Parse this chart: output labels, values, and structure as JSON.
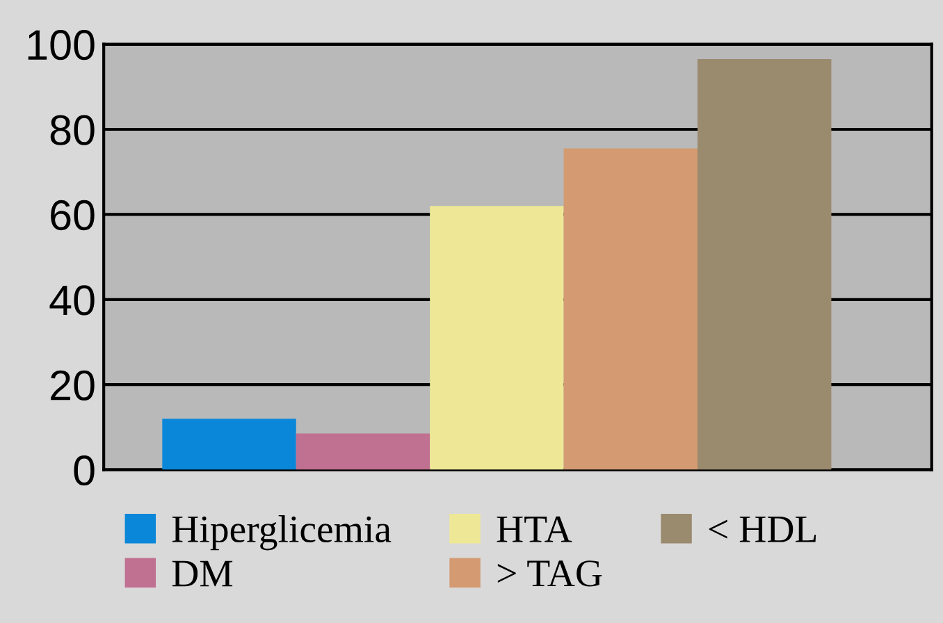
{
  "chart_data": {
    "type": "bar",
    "categories": [
      null
    ],
    "series": [
      {
        "name": "Hiperglicemia",
        "color": "#0a87d9",
        "values": [
          12
        ]
      },
      {
        "name": "DM",
        "color": "#c07090",
        "values": [
          8.5
        ]
      },
      {
        "name": "HTA",
        "color": "#eee896",
        "values": [
          62
        ]
      },
      {
        "name": "> TAG",
        "color": "#d49a72",
        "values": [
          75.5
        ]
      },
      {
        "name": "< HDL",
        "color": "#9a8a6e",
        "values": [
          96.5
        ]
      }
    ],
    "ylim": [
      0,
      100
    ],
    "yticks": [
      0,
      20,
      40,
      60,
      80,
      100
    ],
    "grid": "y",
    "legend": "bottom"
  }
}
